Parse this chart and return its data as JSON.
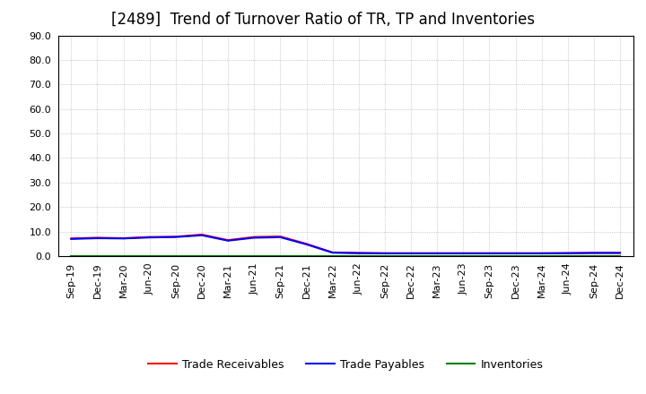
{
  "title": "[2489]  Trend of Turnover Ratio of TR, TP and Inventories",
  "x_labels": [
    "Sep-19",
    "Dec-19",
    "Mar-20",
    "Jun-20",
    "Sep-20",
    "Dec-20",
    "Mar-21",
    "Jun-21",
    "Sep-21",
    "Dec-21",
    "Mar-22",
    "Jun-22",
    "Sep-22",
    "Dec-22",
    "Mar-23",
    "Jun-23",
    "Sep-23",
    "Dec-23",
    "Mar-24",
    "Jun-24",
    "Sep-24",
    "Dec-24"
  ],
  "trade_receivables": [
    7.2,
    7.5,
    7.3,
    7.8,
    7.9,
    8.8,
    6.5,
    7.8,
    8.0,
    5.0,
    1.5,
    1.3,
    1.2,
    1.2,
    1.2,
    1.2,
    1.2,
    1.2,
    1.2,
    1.2,
    1.3,
    1.3
  ],
  "trade_payables": [
    7.0,
    7.3,
    7.2,
    7.6,
    7.8,
    8.5,
    6.3,
    7.5,
    7.7,
    4.8,
    1.4,
    1.2,
    1.1,
    1.1,
    1.1,
    1.1,
    1.1,
    1.1,
    1.1,
    1.2,
    1.3,
    1.3
  ],
  "inventories": [
    0.0,
    0.0,
    0.0,
    0.0,
    0.0,
    0.0,
    0.0,
    0.0,
    0.0,
    0.0,
    0.0,
    0.0,
    0.0,
    0.0,
    0.0,
    0.0,
    0.0,
    0.0,
    0.0,
    0.0,
    0.0,
    0.0
  ],
  "color_tr": "#ff0000",
  "color_tp": "#0000ff",
  "color_inv": "#008000",
  "ylim": [
    0.0,
    90.0
  ],
  "yticks": [
    0.0,
    10.0,
    20.0,
    30.0,
    40.0,
    50.0,
    60.0,
    70.0,
    80.0,
    90.0
  ],
  "bg_color": "#ffffff",
  "grid_color": "#999999",
  "legend_tr": "Trade Receivables",
  "legend_tp": "Trade Payables",
  "legend_inv": "Inventories",
  "title_fontsize": 12,
  "tick_fontsize": 8,
  "legend_fontsize": 9,
  "linewidth": 1.5
}
